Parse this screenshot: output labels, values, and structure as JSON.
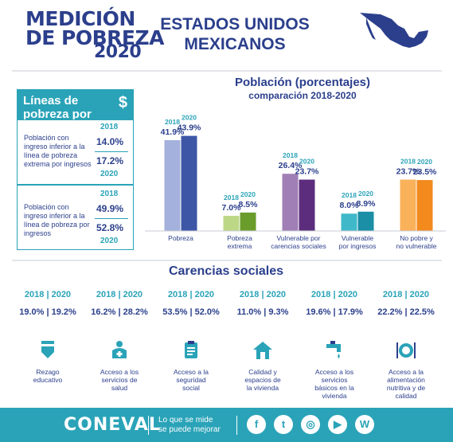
{
  "header": {
    "logo_line1": "MEDICIÓN",
    "logo_line2": "DE POBREZA",
    "logo_year": "2020",
    "title_line1": "ESTADOS UNIDOS",
    "title_line2": "MEXICANOS",
    "map_icon": "mexico-map-icon"
  },
  "income_box": {
    "title": "Líneas de pobreza por ingresos",
    "icon": "dollar-icon",
    "rows": [
      {
        "desc": "Población con ingreso inferior a la línea de pobreza extrema por ingresos",
        "year1": "2018",
        "val1": "14.0%",
        "val2": "17.2%",
        "year2": "2020"
      },
      {
        "desc": "Población con ingreso inferior a la línea de pobreza por ingresos",
        "year1": "2018",
        "val1": "49.9%",
        "val2": "52.8%",
        "year2": "2020"
      }
    ]
  },
  "chart_data": {
    "type": "bar",
    "title": "Población (porcentajes)",
    "subtitle": "comparación 2018-2020",
    "categories": [
      "Pobreza",
      "Pobreza extrema",
      "Vulnerable por carencias sociales",
      "Vulnerable por ingresos",
      "No pobre y no vulnerable"
    ],
    "category_labels": [
      [
        "Pobreza"
      ],
      [
        "Pobreza",
        "extrema"
      ],
      [
        "Vulnerable por",
        "carencias sociales"
      ],
      [
        "Vulnerable",
        "por ingresos"
      ],
      [
        "No pobre y",
        "no vulnerable"
      ]
    ],
    "series": [
      {
        "name": "2018",
        "values": [
          41.9,
          7.0,
          26.4,
          8.0,
          23.7
        ]
      },
      {
        "name": "2020",
        "values": [
          43.9,
          8.5,
          23.7,
          8.9,
          23.5
        ]
      }
    ],
    "value_labels": [
      [
        "41.9%",
        "43.9%"
      ],
      [
        "7.0%",
        "8.5%"
      ],
      [
        "26.4%",
        "23.7%"
      ],
      [
        "8.0%",
        "8.9%"
      ],
      [
        "23.7%",
        "23.5%"
      ]
    ],
    "colors": [
      [
        "#a3b1dc",
        "#3e56a6"
      ],
      [
        "#bcd887",
        "#6a9c2b"
      ],
      [
        "#a07fb6",
        "#5d2d7d"
      ],
      [
        "#3fb9c9",
        "#1a8fa6"
      ],
      [
        "#f9b15a",
        "#f28a1e"
      ]
    ],
    "ylim": [
      0,
      50
    ],
    "grid": false,
    "legend": "none"
  },
  "carencias": {
    "title": "Carencias sociales",
    "items": [
      {
        "y1": "2018",
        "y2": "2020",
        "v1": "19.0%",
        "v2": "19.2%",
        "label": [
          "Rezago",
          "educativo"
        ],
        "icon": "pencil-icon"
      },
      {
        "y1": "2018",
        "y2": "2020",
        "v1": "16.2%",
        "v2": "28.2%",
        "label": [
          "Acceso a los",
          "servicios de",
          "salud"
        ],
        "icon": "medical-staff-icon"
      },
      {
        "y1": "2018",
        "y2": "2020",
        "v1": "53.5%",
        "v2": "52.0%",
        "label": [
          "Acceso a la",
          "seguridad",
          "social"
        ],
        "icon": "social-security-icon"
      },
      {
        "y1": "2018",
        "y2": "2020",
        "v1": "11.0%",
        "v2": "9.3%",
        "label": [
          "Calidad y",
          "espacios de",
          "la vivienda"
        ],
        "icon": "house-icon"
      },
      {
        "y1": "2018",
        "y2": "2020",
        "v1": "19.6%",
        "v2": "17.9%",
        "label": [
          "Acceso a los",
          "servicios",
          "básicos en la",
          "vivienda"
        ],
        "icon": "faucet-icon"
      },
      {
        "y1": "2018",
        "y2": "2020",
        "v1": "22.2%",
        "v2": "22.5%",
        "label": [
          "Acceso a la",
          "alimentación",
          "nutritiva y de",
          "calidad"
        ],
        "icon": "food-icon"
      }
    ]
  },
  "footer": {
    "logo": "CONEVAL",
    "tagline_line1": "Lo que se mide",
    "tagline_line2": "se puede mejorar",
    "social": [
      {
        "icon": "facebook-icon",
        "glyph": "f"
      },
      {
        "icon": "twitter-icon",
        "glyph": "t"
      },
      {
        "icon": "instagram-icon",
        "glyph": "◎"
      },
      {
        "icon": "youtube-icon",
        "glyph": "▶"
      },
      {
        "icon": "wordpress-icon",
        "glyph": "W"
      }
    ],
    "color": "#2aa3b8"
  }
}
